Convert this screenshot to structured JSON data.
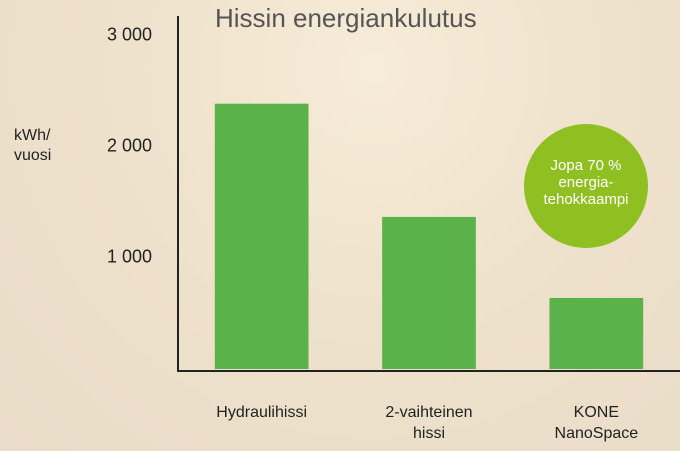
{
  "chart_data": {
    "type": "bar",
    "title": "Hissin energiankulutus",
    "y_label": "kWh/ vuosi",
    "categories": [
      "Hydraulihissi",
      "2-vaihteinen hissi",
      "KONE NanoSpace"
    ],
    "values": [
      2390,
      1370,
      640
    ],
    "color": "#5bb24a",
    "ylim": [
      0,
      3180
    ],
    "yticks": [
      {
        "value": 1000,
        "label": "1 000"
      },
      {
        "value": 2000,
        "label": "2 000"
      },
      {
        "value": 3000,
        "label": "3 000"
      }
    ],
    "annotation": "Jopa 70 % energia-tehokkaampi",
    "annotation_color": "#8fbf21"
  }
}
